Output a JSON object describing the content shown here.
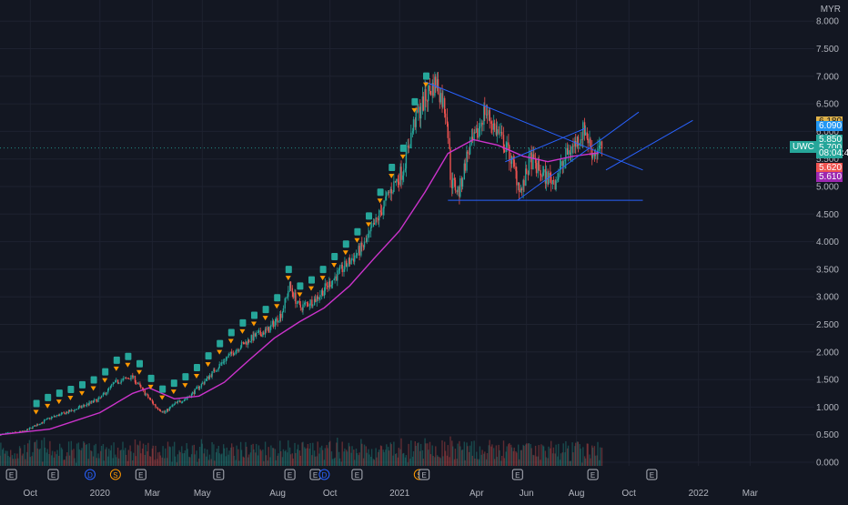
{
  "currency": "MYR",
  "ticker": "UWC",
  "colors": {
    "background": "#131722",
    "up": "#26a69a",
    "down": "#ef5350",
    "ma": "#cc33cc",
    "trendline": "#2962ff",
    "axis_text": "#b2b5be"
  },
  "price_tags": [
    {
      "label": "6.180",
      "value": 6.18,
      "bg": "#e0b34a",
      "fg": "#131722"
    },
    {
      "label": "6.090",
      "value": 6.09,
      "bg": "#2196f3",
      "fg": "#ffffff"
    },
    {
      "label": "5.850",
      "value": 5.85,
      "bg": "#26a69a",
      "fg": "#ffffff"
    },
    {
      "label": "5.700",
      "value": 5.7,
      "bg": "#26a69a",
      "fg": "#ffffff"
    },
    {
      "label": "08:04:44",
      "value": 5.6,
      "bg": "#26a69a",
      "fg": "#ffffff"
    },
    {
      "label": "5.620",
      "value": 5.34,
      "bg": "#ef5350",
      "fg": "#ffffff"
    },
    {
      "label": "5.610",
      "value": 5.17,
      "bg": "#9c27b0",
      "fg": "#ffffff"
    }
  ],
  "chart_data": {
    "type": "candlestick",
    "ticker": "UWC",
    "currency": "MYR",
    "y_ticks": [
      "8.000",
      "7.500",
      "7.000",
      "6.500",
      "6.000",
      "5.500",
      "5.000",
      "4.500",
      "4.000",
      "3.500",
      "3.000",
      "2.500",
      "2.000",
      "1.500",
      "1.000",
      "0.500",
      "0.000"
    ],
    "ylim": [
      0,
      8
    ],
    "x_ticks": [
      "Oct",
      "2020",
      "Mar",
      "May",
      "Aug",
      "Oct",
      "2021",
      "Apr",
      "Jun",
      "Aug",
      "Oct",
      "2022",
      "Mar"
    ],
    "xlim": [
      "2019-09-01",
      "2022-04-30"
    ],
    "last_price": 5.7,
    "close_series": [
      [
        "2019-09-01",
        0.5
      ],
      [
        "2019-10-01",
        0.56
      ],
      [
        "2019-11-01",
        0.8
      ],
      [
        "2019-12-01",
        0.95
      ],
      [
        "2020-01-01",
        1.15
      ],
      [
        "2020-01-20",
        1.45
      ],
      [
        "2020-02-10",
        1.55
      ],
      [
        "2020-02-25",
        1.25
      ],
      [
        "2020-03-10",
        1.0
      ],
      [
        "2020-03-20",
        0.9
      ],
      [
        "2020-04-01",
        1.05
      ],
      [
        "2020-04-20",
        1.2
      ],
      [
        "2020-05-10",
        1.5
      ],
      [
        "2020-06-01",
        1.85
      ],
      [
        "2020-06-20",
        2.1
      ],
      [
        "2020-07-10",
        2.3
      ],
      [
        "2020-07-25",
        2.4
      ],
      [
        "2020-08-10",
        2.7
      ],
      [
        "2020-08-20",
        3.2
      ],
      [
        "2020-09-01",
        2.8
      ],
      [
        "2020-09-20",
        2.95
      ],
      [
        "2020-10-05",
        3.2
      ],
      [
        "2020-10-20",
        3.45
      ],
      [
        "2020-11-05",
        3.7
      ],
      [
        "2020-11-20",
        3.95
      ],
      [
        "2020-12-05",
        4.4
      ],
      [
        "2020-12-20",
        4.9
      ],
      [
        "2021-01-05",
        5.3
      ],
      [
        "2021-01-20",
        6.2
      ],
      [
        "2021-02-05",
        6.7
      ],
      [
        "2021-02-15",
        6.9
      ],
      [
        "2021-02-28",
        6.3
      ],
      [
        "2021-03-05",
        5.1
      ],
      [
        "2021-03-15",
        4.9
      ],
      [
        "2021-03-25",
        5.6
      ],
      [
        "2021-04-05",
        5.9
      ],
      [
        "2021-04-15",
        6.4
      ],
      [
        "2021-04-30",
        6.0
      ],
      [
        "2021-05-15",
        5.6
      ],
      [
        "2021-05-30",
        4.9
      ],
      [
        "2021-06-10",
        5.5
      ],
      [
        "2021-06-25",
        5.2
      ],
      [
        "2021-07-10",
        5.1
      ],
      [
        "2021-07-25",
        5.6
      ],
      [
        "2021-08-05",
        5.8
      ],
      [
        "2021-08-15",
        6.05
      ],
      [
        "2021-08-25",
        5.6
      ],
      [
        "2021-09-05",
        5.7
      ]
    ],
    "ma_series": [
      [
        "2019-09-01",
        0.5
      ],
      [
        "2019-11-01",
        0.6
      ],
      [
        "2020-01-01",
        0.9
      ],
      [
        "2020-02-10",
        1.25
      ],
      [
        "2020-03-01",
        1.35
      ],
      [
        "2020-04-01",
        1.15
      ],
      [
        "2020-05-01",
        1.2
      ],
      [
        "2020-06-01",
        1.45
      ],
      [
        "2020-07-01",
        1.85
      ],
      [
        "2020-08-01",
        2.25
      ],
      [
        "2020-09-01",
        2.55
      ],
      [
        "2020-10-01",
        2.8
      ],
      [
        "2020-11-01",
        3.2
      ],
      [
        "2020-12-01",
        3.7
      ],
      [
        "2021-01-01",
        4.2
      ],
      [
        "2021-02-01",
        4.9
      ],
      [
        "2021-03-01",
        5.6
      ],
      [
        "2021-04-01",
        5.85
      ],
      [
        "2021-05-01",
        5.75
      ],
      [
        "2021-06-01",
        5.55
      ],
      [
        "2021-07-01",
        5.45
      ],
      [
        "2021-08-01",
        5.55
      ],
      [
        "2021-09-01",
        5.61
      ]
    ],
    "trendlines": [
      {
        "from": [
          "2021-02-01",
          6.9
        ],
        "to": [
          "2021-10-25",
          5.3
        ]
      },
      {
        "from": [
          "2021-03-01",
          4.75
        ],
        "to": [
          "2021-10-25",
          4.75
        ]
      },
      {
        "from": [
          "2021-05-25",
          4.75
        ],
        "to": [
          "2021-10-20",
          6.35
        ]
      },
      {
        "from": [
          "2021-05-10",
          5.45
        ],
        "to": [
          "2021-08-15",
          6.05
        ]
      },
      {
        "from": [
          "2021-09-10",
          5.3
        ],
        "to": [
          "2021-12-25",
          6.2
        ]
      }
    ],
    "event_markers": [
      {
        "date": "2019-09-15",
        "label": "E"
      },
      {
        "date": "2019-11-05",
        "label": "E"
      },
      {
        "date": "2019-12-20",
        "label": "D"
      },
      {
        "date": "2020-01-20",
        "label": "S"
      },
      {
        "date": "2020-02-20",
        "label": "E"
      },
      {
        "date": "2020-05-25",
        "label": "E"
      },
      {
        "date": "2020-08-20",
        "label": "E"
      },
      {
        "date": "2020-09-20",
        "label": "E"
      },
      {
        "date": "2020-10-01",
        "label": "D"
      },
      {
        "date": "2020-11-10",
        "label": "E"
      },
      {
        "date": "2021-01-25",
        "label": "S"
      },
      {
        "date": "2021-01-31",
        "label": "E"
      },
      {
        "date": "2021-05-25",
        "label": "E"
      },
      {
        "date": "2021-08-25",
        "label": "E"
      },
      {
        "date": "2021-11-05",
        "label": "E"
      }
    ]
  }
}
